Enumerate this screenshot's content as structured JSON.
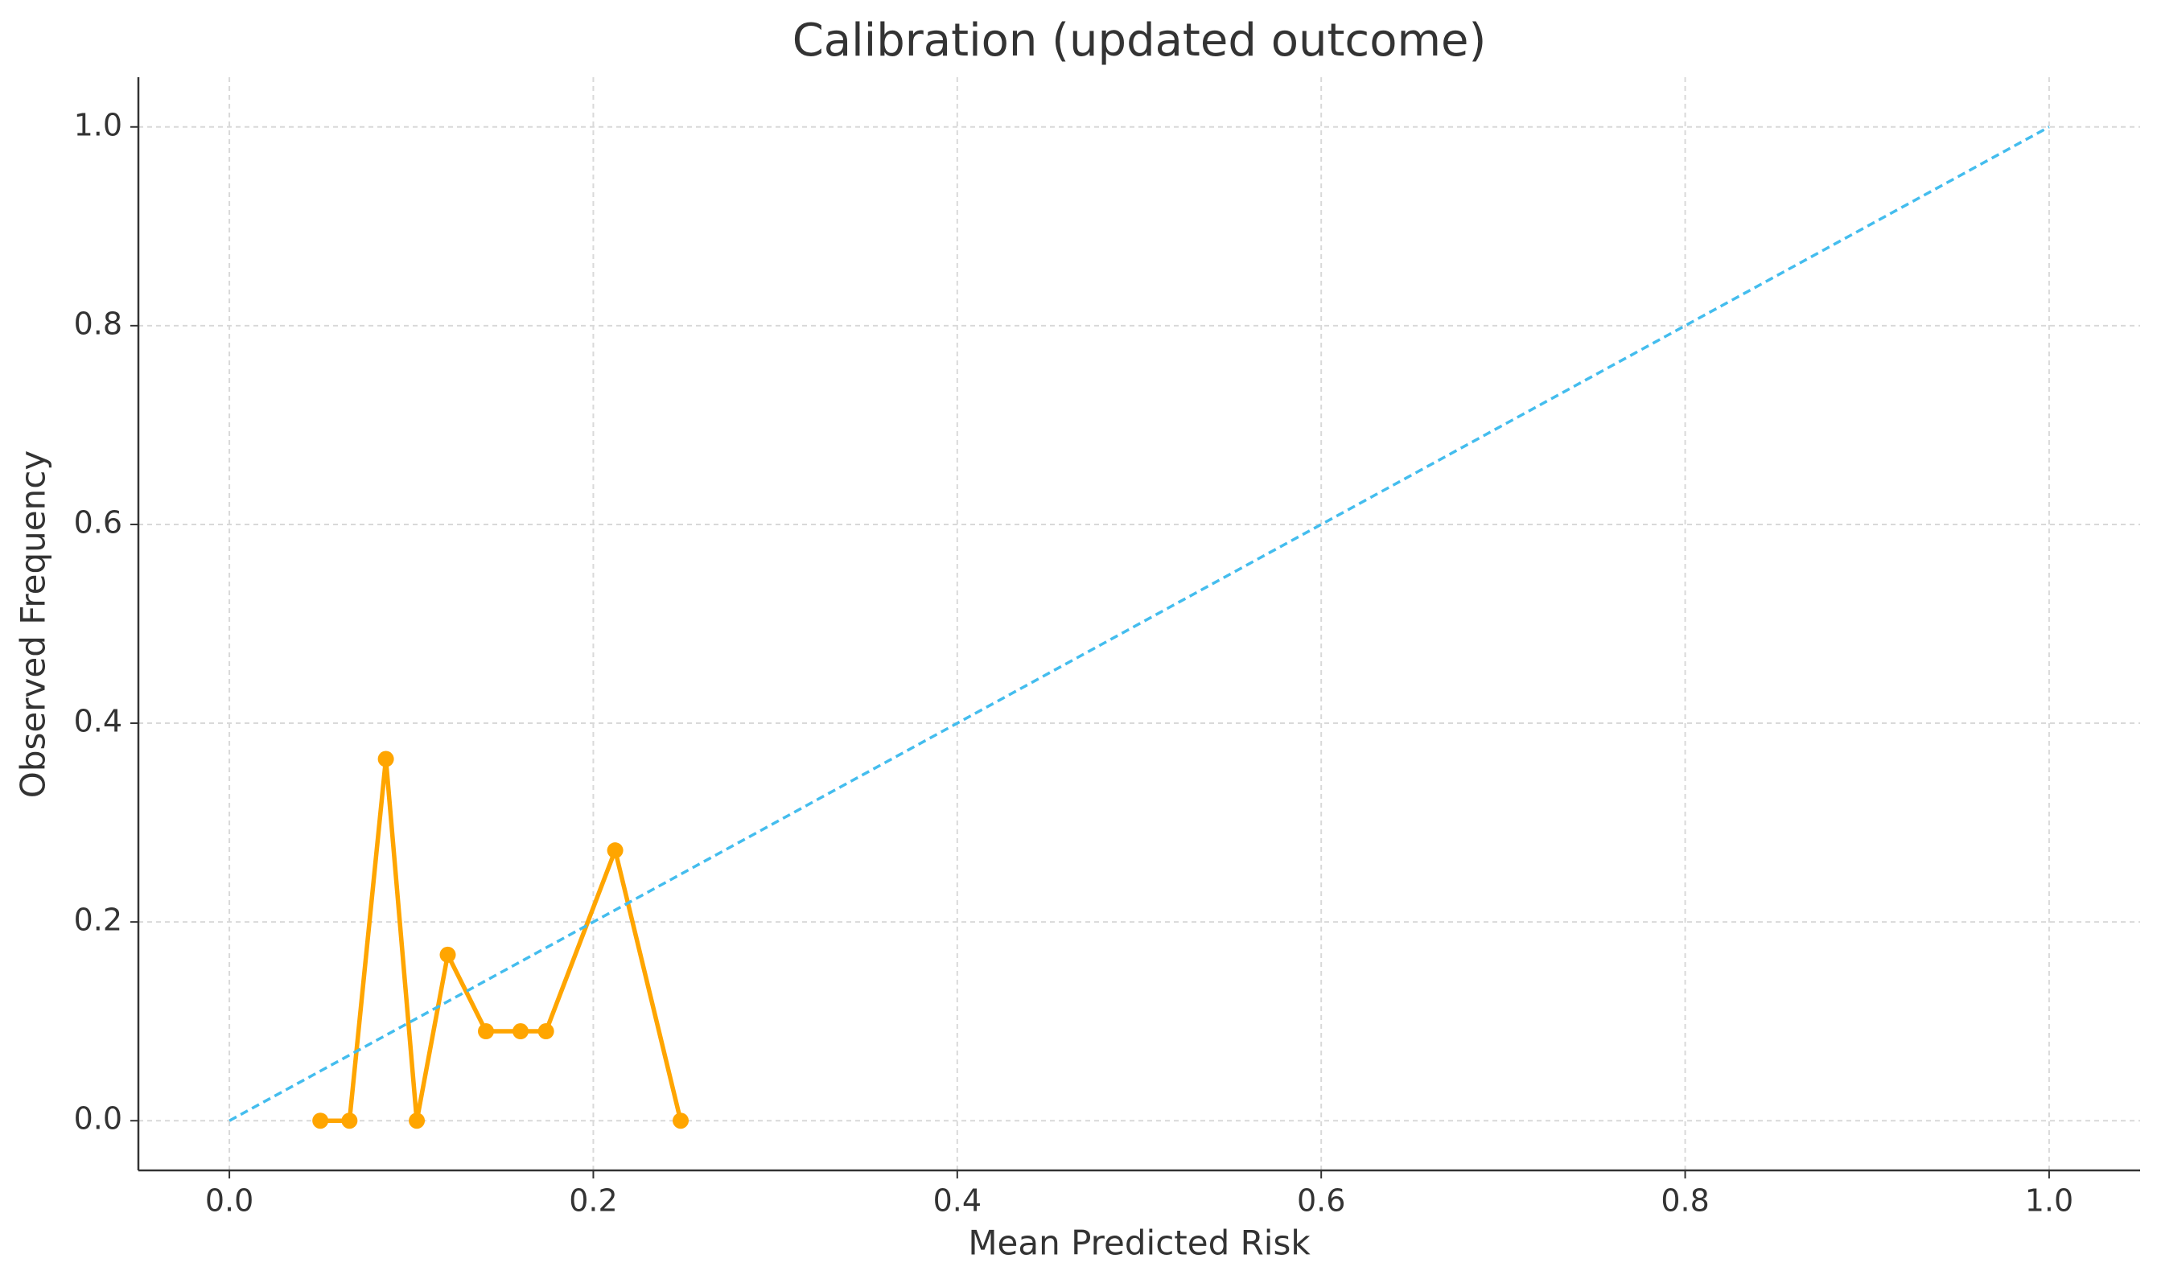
{
  "chart_data": {
    "type": "line",
    "title": "Calibration (updated outcome)",
    "x_label": "Mean Predicted Risk",
    "y_label": "Observed Frequency",
    "series": [
      {
        "color": "#ffa500",
        "linestyle": "solid",
        "marker": "o",
        "x": [
          0.05,
          0.066,
          0.086,
          0.103,
          0.12,
          0.141,
          0.16,
          0.174,
          0.212,
          0.248
        ],
        "values": [
          0,
          0,
          0.364,
          0,
          0.167,
          0.09,
          0.09,
          0.09,
          0.272,
          0
        ]
      },
      {
        "color": "#44bdee",
        "linestyle": "dashed",
        "x": [
          0,
          1
        ],
        "values": [
          0,
          1
        ]
      }
    ],
    "xlim": [
      -0.05,
      1.05
    ],
    "ylim": [
      -0.05,
      1.05
    ],
    "xticks": [
      {
        "value": 0,
        "label": "0.0"
      },
      {
        "value": 0.2,
        "label": "0.2"
      },
      {
        "value": 0.4,
        "label": "0.4"
      },
      {
        "value": 0.6,
        "label": "0.6"
      },
      {
        "value": 0.8,
        "label": "0.8"
      },
      {
        "value": 1,
        "label": "1.0"
      }
    ],
    "yticks": [
      {
        "value": 0,
        "label": "0.0"
      },
      {
        "value": 0.2,
        "label": "0.2"
      },
      {
        "value": 0.4,
        "label": "0.4"
      },
      {
        "value": 0.6,
        "label": "0.6"
      },
      {
        "value": 0.8,
        "label": "0.8"
      },
      {
        "value": 1,
        "label": "1.0"
      }
    ],
    "grid": true
  }
}
